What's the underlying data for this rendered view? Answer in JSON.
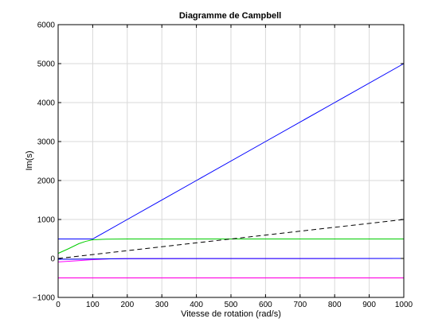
{
  "chart_data": {
    "type": "line",
    "title": "Diagramme de Campbell",
    "xlabel": "Vitesse de rotation (rad/s)",
    "ylabel": "Im(s)",
    "xlim": [
      0,
      1000
    ],
    "ylim": [
      -1000,
      6000
    ],
    "xticks": [
      0,
      100,
      200,
      300,
      400,
      500,
      600,
      700,
      800,
      900,
      1000
    ],
    "yticks": [
      -1000,
      0,
      1000,
      2000,
      3000,
      4000,
      5000,
      6000
    ],
    "xtick_labels": [
      "0",
      "100",
      "200",
      "300",
      "400",
      "500",
      "600",
      "700",
      "800",
      "900",
      "1000"
    ],
    "ytick_labels": [
      "−1000",
      "0",
      "1000",
      "2000",
      "3000",
      "4000",
      "5000",
      "6000"
    ],
    "grid": true,
    "series": [
      {
        "color": "#0000ff",
        "dash": "solid",
        "points": [
          [
            0,
            500
          ],
          [
            100,
            500
          ],
          [
            110,
            550
          ],
          [
            200,
            1000
          ],
          [
            400,
            2000
          ],
          [
            600,
            3000
          ],
          [
            800,
            4000
          ],
          [
            1000,
            5000
          ]
        ]
      },
      {
        "color": "#00cc00",
        "dash": "solid",
        "points": [
          [
            0,
            130
          ],
          [
            30,
            250
          ],
          [
            60,
            380
          ],
          [
            80,
            440
          ],
          [
            100,
            480
          ],
          [
            140,
            495
          ],
          [
            200,
            500
          ],
          [
            1000,
            500
          ]
        ]
      },
      {
        "color": "#000000",
        "dash": "dashed",
        "points": [
          [
            0,
            0
          ],
          [
            1000,
            1000
          ]
        ]
      },
      {
        "color": "#ff00ff",
        "dash": "solid",
        "points": [
          [
            0,
            -90
          ],
          [
            50,
            -60
          ],
          [
            100,
            -30
          ],
          [
            150,
            -10
          ],
          [
            200,
            -5
          ],
          [
            1000,
            0
          ]
        ]
      },
      {
        "color": "#0000ff",
        "dash": "solid",
        "points": [
          [
            0,
            -20
          ],
          [
            50,
            -20
          ],
          [
            100,
            -15
          ],
          [
            200,
            -5
          ],
          [
            1000,
            0
          ]
        ]
      },
      {
        "color": "#ff0000",
        "dash": "solid",
        "points": [
          [
            0,
            -500
          ],
          [
            1000,
            -500
          ]
        ]
      },
      {
        "color": "#ff00ff",
        "dash": "solid",
        "points": [
          [
            0,
            -498
          ],
          [
            1000,
            -498
          ]
        ]
      }
    ]
  }
}
